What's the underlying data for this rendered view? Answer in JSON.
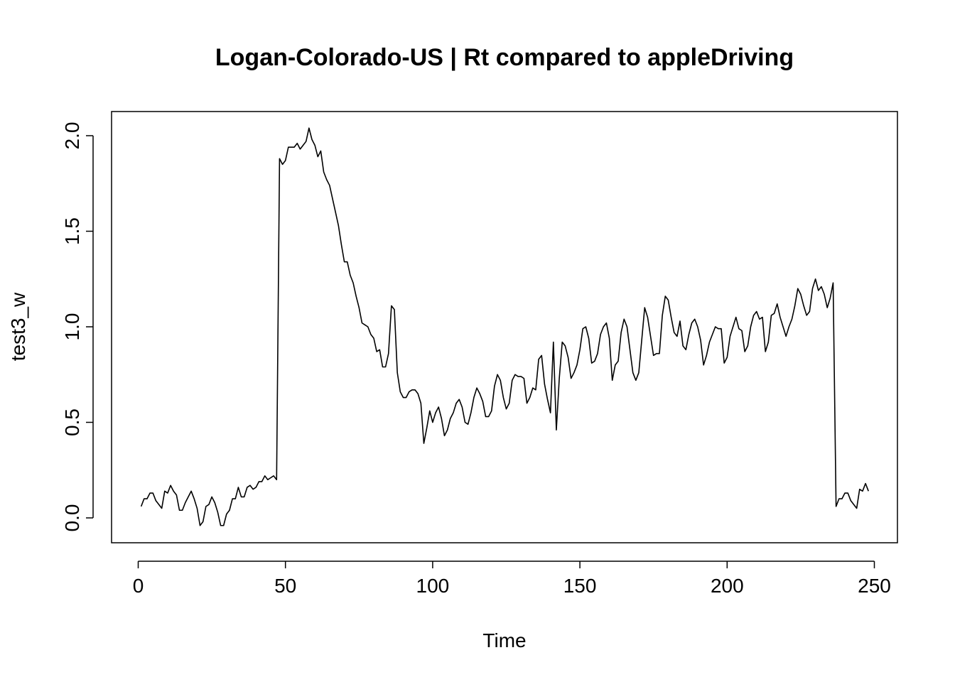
{
  "chart_data": {
    "type": "line",
    "title": "Logan-Colorado-US | Rt compared to appleDriving",
    "xlabel": "Time",
    "ylabel": "test3_w",
    "xlim": [
      1,
      248
    ],
    "ylim": [
      -0.05,
      2.05
    ],
    "x_ticks": [
      0,
      50,
      100,
      150,
      200,
      250
    ],
    "x_tick_labels": [
      "0",
      "50",
      "100",
      "150",
      "200",
      "250"
    ],
    "y_ticks": [
      0.0,
      0.5,
      1.0,
      1.5,
      2.0
    ],
    "y_tick_labels": [
      "0.0",
      "0.5",
      "1.0",
      "1.5",
      "2.0"
    ],
    "grid": false,
    "legend": "none",
    "line_color": "#000000",
    "series": [
      {
        "x": [
          1,
          2,
          3,
          4,
          5,
          6,
          7,
          8,
          9,
          10,
          11,
          12,
          13,
          14,
          15,
          16,
          17,
          18,
          19,
          20,
          21,
          22,
          23,
          24,
          25,
          26,
          27,
          28,
          29,
          30,
          31,
          32,
          33,
          34,
          35,
          36,
          37,
          38,
          39,
          40,
          41,
          42,
          43,
          44,
          45,
          46,
          47,
          48,
          49,
          50,
          51,
          52,
          53,
          54,
          55,
          56,
          57,
          58,
          59,
          60,
          61,
          62,
          63,
          64,
          65,
          66,
          67,
          68,
          69,
          70,
          71,
          72,
          73,
          74,
          75,
          76,
          77,
          78,
          79,
          80,
          81,
          82,
          83,
          84,
          85,
          86,
          87,
          88,
          89,
          90,
          91,
          92,
          93,
          94,
          95,
          96,
          97,
          98,
          99,
          100,
          101,
          102,
          103,
          104,
          105,
          106,
          107,
          108,
          109,
          110,
          111,
          112,
          113,
          114,
          115,
          116,
          117,
          118,
          119,
          120,
          121,
          122,
          123,
          124,
          125,
          126,
          127,
          128,
          129,
          130,
          131,
          132,
          133,
          134,
          135,
          136,
          137,
          138,
          139,
          140,
          141,
          142,
          143,
          144,
          145,
          146,
          147,
          148,
          149,
          150,
          151,
          152,
          153,
          154,
          155,
          156,
          157,
          158,
          159,
          160,
          161,
          162,
          163,
          164,
          165,
          166,
          167,
          168,
          169,
          170,
          171,
          172,
          173,
          174,
          175,
          176,
          177,
          178,
          179,
          180,
          181,
          182,
          183,
          184,
          185,
          186,
          187,
          188,
          189,
          190,
          191,
          192,
          193,
          194,
          195,
          196,
          197,
          198,
          199,
          200,
          201,
          202,
          203,
          204,
          205,
          206,
          207,
          208,
          209,
          210,
          211,
          212,
          213,
          214,
          215,
          216,
          217,
          218,
          219,
          220,
          221,
          222,
          223,
          224,
          225,
          226,
          227,
          228,
          229,
          230,
          231,
          232,
          233,
          234,
          235,
          236,
          237,
          238,
          239,
          240,
          241,
          242,
          243,
          244,
          245,
          246,
          247,
          248
        ],
        "y": [
          0.06,
          0.1,
          0.1,
          0.13,
          0.13,
          0.09,
          0.07,
          0.05,
          0.14,
          0.13,
          0.17,
          0.14,
          0.12,
          0.04,
          0.04,
          0.08,
          0.11,
          0.14,
          0.1,
          0.05,
          -0.04,
          -0.02,
          0.06,
          0.07,
          0.11,
          0.08,
          0.03,
          -0.04,
          -0.04,
          0.02,
          0.04,
          0.1,
          0.1,
          0.16,
          0.11,
          0.11,
          0.16,
          0.17,
          0.15,
          0.16,
          0.19,
          0.19,
          0.22,
          0.2,
          0.21,
          0.22,
          0.2,
          1.88,
          1.85,
          1.87,
          1.94,
          1.94,
          1.94,
          1.96,
          1.93,
          1.95,
          1.97,
          2.04,
          1.98,
          1.95,
          1.89,
          1.92,
          1.81,
          1.77,
          1.74,
          1.67,
          1.6,
          1.53,
          1.43,
          1.34,
          1.34,
          1.27,
          1.23,
          1.16,
          1.1,
          1.02,
          1.01,
          1.0,
          0.96,
          0.94,
          0.87,
          0.88,
          0.79,
          0.79,
          0.86,
          1.11,
          1.09,
          0.76,
          0.66,
          0.63,
          0.63,
          0.66,
          0.67,
          0.67,
          0.65,
          0.6,
          0.39,
          0.47,
          0.56,
          0.5,
          0.55,
          0.58,
          0.52,
          0.43,
          0.46,
          0.52,
          0.55,
          0.6,
          0.62,
          0.58,
          0.5,
          0.49,
          0.55,
          0.63,
          0.68,
          0.65,
          0.61,
          0.53,
          0.53,
          0.56,
          0.69,
          0.75,
          0.72,
          0.63,
          0.57,
          0.6,
          0.72,
          0.75,
          0.74,
          0.74,
          0.73,
          0.6,
          0.63,
          0.68,
          0.67,
          0.83,
          0.85,
          0.7,
          0.62,
          0.55,
          0.92,
          0.46,
          0.73,
          0.92,
          0.9,
          0.84,
          0.73,
          0.76,
          0.8,
          0.88,
          0.99,
          1.0,
          0.94,
          0.81,
          0.82,
          0.86,
          0.96,
          1.0,
          1.02,
          0.94,
          0.72,
          0.8,
          0.82,
          0.97,
          1.04,
          1.0,
          0.88,
          0.76,
          0.72,
          0.76,
          0.93,
          1.1,
          1.05,
          0.95,
          0.85,
          0.86,
          0.86,
          1.06,
          1.16,
          1.14,
          1.05,
          0.97,
          0.95,
          1.03,
          0.9,
          0.88,
          0.96,
          1.02,
          1.04,
          1.0,
          0.93,
          0.8,
          0.85,
          0.92,
          0.96,
          1.0,
          0.99,
          0.99,
          0.81,
          0.84,
          0.95,
          1.0,
          1.05,
          0.99,
          0.98,
          0.87,
          0.9,
          1.0,
          1.06,
          1.08,
          1.04,
          1.05,
          0.87,
          0.92,
          1.06,
          1.07,
          1.12,
          1.05,
          1.0,
          0.95,
          1.0,
          1.04,
          1.11,
          1.2,
          1.17,
          1.11,
          1.06,
          1.08,
          1.2,
          1.25,
          1.19,
          1.21,
          1.17,
          1.1,
          1.15,
          1.23,
          0.06,
          0.1,
          0.1,
          0.13,
          0.13,
          0.09,
          0.07,
          0.05,
          0.15,
          0.14,
          0.18,
          0.14
        ]
      }
    ]
  }
}
